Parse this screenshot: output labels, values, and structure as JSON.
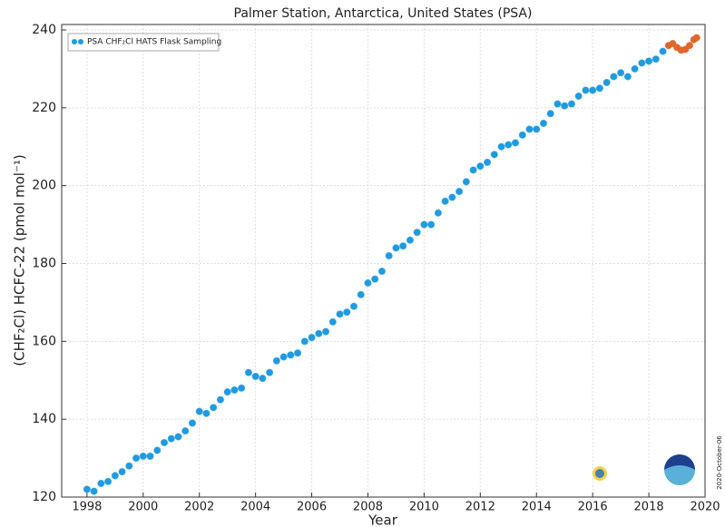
{
  "chart_data": {
    "type": "scatter",
    "title": "Palmer Station, Antarctica, United States (PSA)",
    "x_label": "Year",
    "y_label": "(CHF₂Cl) HCFC-22 (pmol mol⁻¹)",
    "annotation": "2020-October-06",
    "xlim": [
      1997.1,
      2020
    ],
    "ylim": [
      120,
      241.4
    ],
    "xticks": [
      1998,
      2000,
      2002,
      2004,
      2006,
      2008,
      2010,
      2012,
      2014,
      2016,
      2018,
      2020
    ],
    "yticks": [
      120,
      140,
      160,
      180,
      200,
      220,
      240
    ],
    "grid": true,
    "legend": "upper left",
    "series": [
      {
        "name": "PSA CHF₂Cl HATS Flask Sampling",
        "color": "#1f9be0",
        "x": [
          1998,
          1998.25,
          1998.5,
          1998.75,
          1999,
          1999.25,
          1999.5,
          1999.75,
          2000,
          2000.25,
          2000.5,
          2000.75,
          2001,
          2001.25,
          2001.5,
          2001.75,
          2002,
          2002.25,
          2002.5,
          2002.75,
          2003,
          2003.25,
          2003.5,
          2003.75,
          2004,
          2004.25,
          2004.5,
          2004.75,
          2005,
          2005.25,
          2005.5,
          2005.75,
          2006,
          2006.25,
          2006.5,
          2006.75,
          2007,
          2007.25,
          2007.5,
          2007.75,
          2008,
          2008.25,
          2008.5,
          2008.75,
          2009,
          2009.25,
          2009.5,
          2009.75,
          2010,
          2010.25,
          2010.5,
          2010.75,
          2011,
          2011.25,
          2011.5,
          2011.75,
          2012,
          2012.25,
          2012.5,
          2012.75,
          2013,
          2013.25,
          2013.5,
          2013.75,
          2014,
          2014.25,
          2014.5,
          2014.75,
          2015,
          2015.25,
          2015.5,
          2015.75,
          2016,
          2016.25,
          2016.5,
          2016.75,
          2017,
          2017.25,
          2017.5,
          2017.75,
          2018,
          2018.25,
          2018.5
        ],
        "values": [
          122,
          121.5,
          123.5,
          124,
          125.5,
          126.5,
          128,
          130,
          130.5,
          130.5,
          132,
          134,
          135,
          135.5,
          137,
          139,
          142,
          141.5,
          143,
          145,
          147,
          147.5,
          148,
          152,
          151,
          150.5,
          152,
          155,
          156,
          156.5,
          157,
          160,
          161,
          162,
          162.5,
          165,
          167,
          167.5,
          169,
          172,
          175,
          176,
          178,
          182,
          184,
          184.5,
          186,
          188,
          190,
          190,
          193,
          196,
          197,
          198.5,
          201,
          204,
          205,
          206,
          208,
          210,
          210.5,
          211,
          213,
          214.5,
          214.5,
          216,
          218.5,
          221,
          220.5,
          221,
          223,
          224.5,
          224.5,
          225,
          226.5,
          228,
          229,
          228,
          230,
          231.5,
          232,
          232.5,
          234.5
        ]
      },
      {
        "color": "#e0662a",
        "x": [
          2018.7,
          2018.85,
          2019,
          2019.15,
          2019.3,
          2019.45,
          2019.6,
          2019.7
        ],
        "values": [
          236,
          236.5,
          235.5,
          234.8,
          235,
          236,
          237.5,
          238
        ]
      }
    ]
  }
}
